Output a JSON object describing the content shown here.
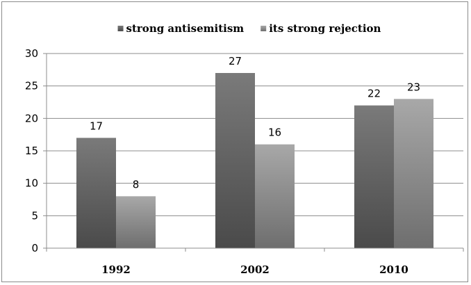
{
  "chart_data": {
    "type": "bar",
    "categories": [
      "1992",
      "2002",
      "2010"
    ],
    "series": [
      {
        "name": "strong antisemitism",
        "values": [
          17,
          27,
          22
        ],
        "color": "#6a6a6a"
      },
      {
        "name": "its strong rejection",
        "values": [
          8,
          16,
          23
        ],
        "color": "#9c9c9c"
      }
    ],
    "ylim": [
      0,
      30
    ],
    "yticks": [
      0,
      5,
      10,
      15,
      20,
      25,
      30
    ],
    "grid": true,
    "legend": "top-center",
    "data_labels": true
  }
}
